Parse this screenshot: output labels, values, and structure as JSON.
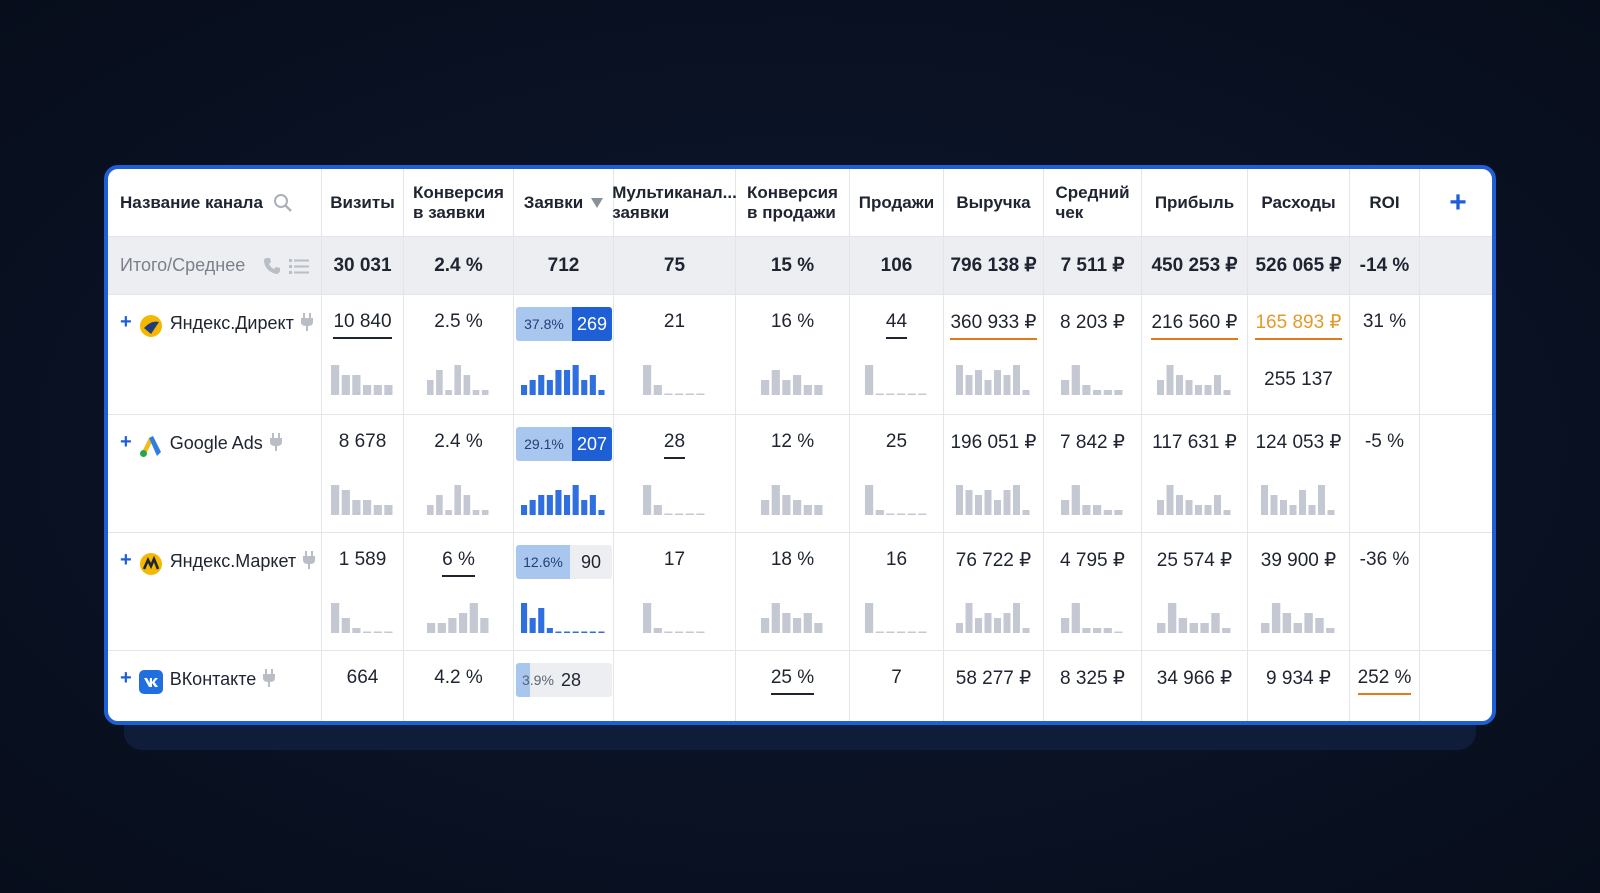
{
  "header": {
    "channel": "Название канала",
    "visits": "Визиты",
    "conv_req_l1": "Конверсия",
    "conv_req_l2": "в заявки",
    "requests": "Заявки",
    "multi_l1": "Мультиканал...",
    "multi_l2": "заявки",
    "conv_sales_l1": "Конверсия",
    "conv_sales_l2": "в продажи",
    "sales": "Продажи",
    "revenue": "Выручка",
    "avg_l1": "Средний",
    "avg_l2": "чек",
    "profit": "Прибыль",
    "expenses": "Расходы",
    "roi": "ROI",
    "add_icon": "plus-icon"
  },
  "totals": {
    "label": "Итого/Среднее",
    "visits": "30 031",
    "conv_req": "2.4 %",
    "requests": "712",
    "multi": "75",
    "conv_sales": "15 %",
    "sales": "106",
    "revenue": "796 138 ₽",
    "avg": "7 511 ₽",
    "profit": "450 253 ₽",
    "expenses": "526 065 ₽",
    "roi": "-14 %"
  },
  "rows": [
    {
      "name": "Яндекс.Директ",
      "visits": "10 840",
      "conv_req": "2.5 %",
      "req_pct": "37.8%",
      "req_cnt": "269",
      "req_share": 37.8,
      "multi": "21",
      "conv_sales": "16 %",
      "sales": "44",
      "revenue": "360 933 ₽",
      "avg": "8 203 ₽",
      "profit": "216 560 ₽",
      "expenses": "165 893 ₽",
      "expenses_extra": "255 137",
      "roi": "31 %"
    },
    {
      "name": "Google Ads",
      "visits": "8 678",
      "conv_req": "2.4 %",
      "req_pct": "29.1%",
      "req_cnt": "207",
      "req_share": 29.1,
      "multi": "28",
      "conv_sales": "12 %",
      "sales": "25",
      "revenue": "196 051 ₽",
      "avg": "7 842 ₽",
      "profit": "117 631 ₽",
      "expenses": "124 053 ₽",
      "roi": "-5 %"
    },
    {
      "name": "Яндекс.Маркет",
      "visits": "1 589",
      "conv_req": "6 %",
      "req_pct": "12.6%",
      "req_cnt": "90",
      "req_share": 12.6,
      "multi": "17",
      "conv_sales": "18 %",
      "sales": "16",
      "revenue": "76 722 ₽",
      "avg": "4 795 ₽",
      "profit": "25 574 ₽",
      "expenses": "39 900 ₽",
      "roi": "-36 %"
    },
    {
      "name": "ВКонтакте",
      "visits": "664",
      "conv_req": "4.2 %",
      "req_pct": "3.9%",
      "req_cnt": "28",
      "req_share": 3.9,
      "multi": "",
      "conv_sales": "25 %",
      "sales": "7",
      "revenue": "58 277 ₽",
      "avg": "8 325 ₽",
      "profit": "34 966 ₽",
      "expenses": "9 934 ₽",
      "roi": "252 %"
    }
  ],
  "colors": {
    "accent": "#1f5fd6",
    "accent_light": "#a9c6ef",
    "orange": "#e39a2c",
    "spark": "#c4c8d2",
    "spark_blue": "#2f6fe0"
  }
}
